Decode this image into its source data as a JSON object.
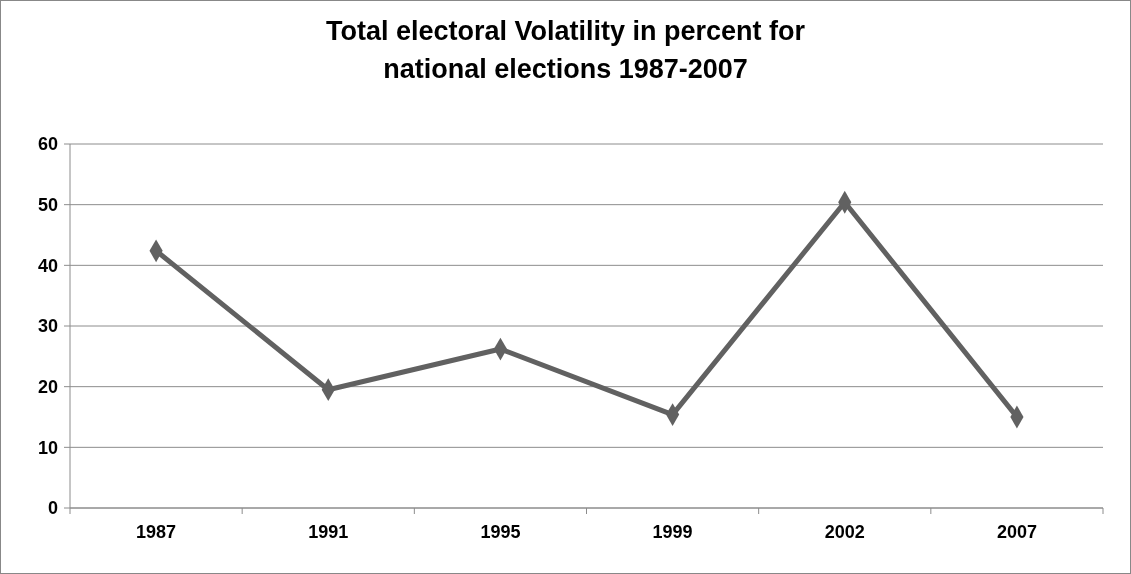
{
  "chart_data": {
    "type": "line",
    "title": "Total electoral Volatility in percent for\nnational elections 1987-2007",
    "categories": [
      "1987",
      "1991",
      "1995",
      "1999",
      "2002",
      "2007"
    ],
    "series": [
      {
        "color": "#616161",
        "values": [
          42.4,
          19.5,
          26.2,
          15.4,
          50.4,
          15.0
        ]
      }
    ],
    "ylim": [
      0,
      60
    ],
    "yticks": [
      0,
      10,
      20,
      30,
      40,
      50,
      60
    ],
    "grid": "y",
    "marker": "diamond",
    "line_style": "solid"
  }
}
